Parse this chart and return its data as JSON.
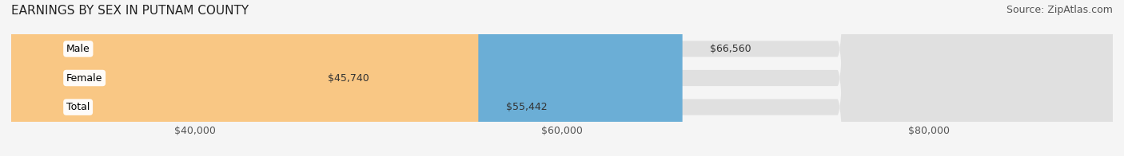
{
  "title": "EARNINGS BY SEX IN PUTNAM COUNTY",
  "source": "Source: ZipAtlas.com",
  "categories": [
    "Male",
    "Female",
    "Total"
  ],
  "values": [
    66560,
    45740,
    55442
  ],
  "bar_colors": [
    "#6baed6",
    "#f4a0b5",
    "#f9c784"
  ],
  "bar_bg_color": "#e8e8e8",
  "label_bg_color": "#ffffff",
  "x_min": 30000,
  "x_max": 90000,
  "x_ticks": [
    40000,
    60000,
    80000
  ],
  "x_tick_labels": [
    "$40,000",
    "$60,000",
    "$80,000"
  ],
  "title_fontsize": 11,
  "source_fontsize": 9,
  "tick_fontsize": 9,
  "bar_label_fontsize": 9,
  "cat_label_fontsize": 9,
  "background_color": "#f5f5f5",
  "plot_bg_color": "#f5f5f5"
}
